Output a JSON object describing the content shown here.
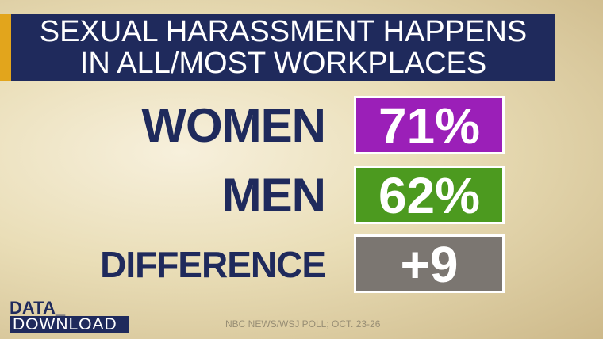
{
  "title": [
    "SEXUAL HARASSMENT HAPPENS",
    "IN ALL/MOST WORKPLACES"
  ],
  "rows": [
    {
      "label": "WOMEN",
      "value": "71%",
      "color": "#9b1fb8"
    },
    {
      "label": "MEN",
      "value": "62%",
      "color": "#4c9a1f"
    },
    {
      "label": "DIFFERENCE",
      "value": "+9",
      "color": "#7b7671"
    }
  ],
  "logo": {
    "line1": "DATA_",
    "line2": "DOWNLOAD"
  },
  "source": "NBC NEWS/WSJ POLL; OCT. 23-26"
}
